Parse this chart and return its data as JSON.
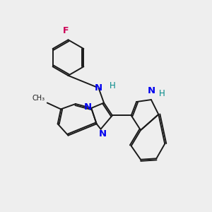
{
  "bg_color": "#eeeeee",
  "bond_color": "#1a1a1a",
  "N_color": "#0000ee",
  "F_color": "#cc0055",
  "H_color": "#008888",
  "line_width": 1.4,
  "font_size": 8.5,
  "fig_size": [
    3.0,
    3.0
  ],
  "dpi": 100,
  "xlim": [
    0,
    10
  ],
  "ylim": [
    0,
    10
  ]
}
